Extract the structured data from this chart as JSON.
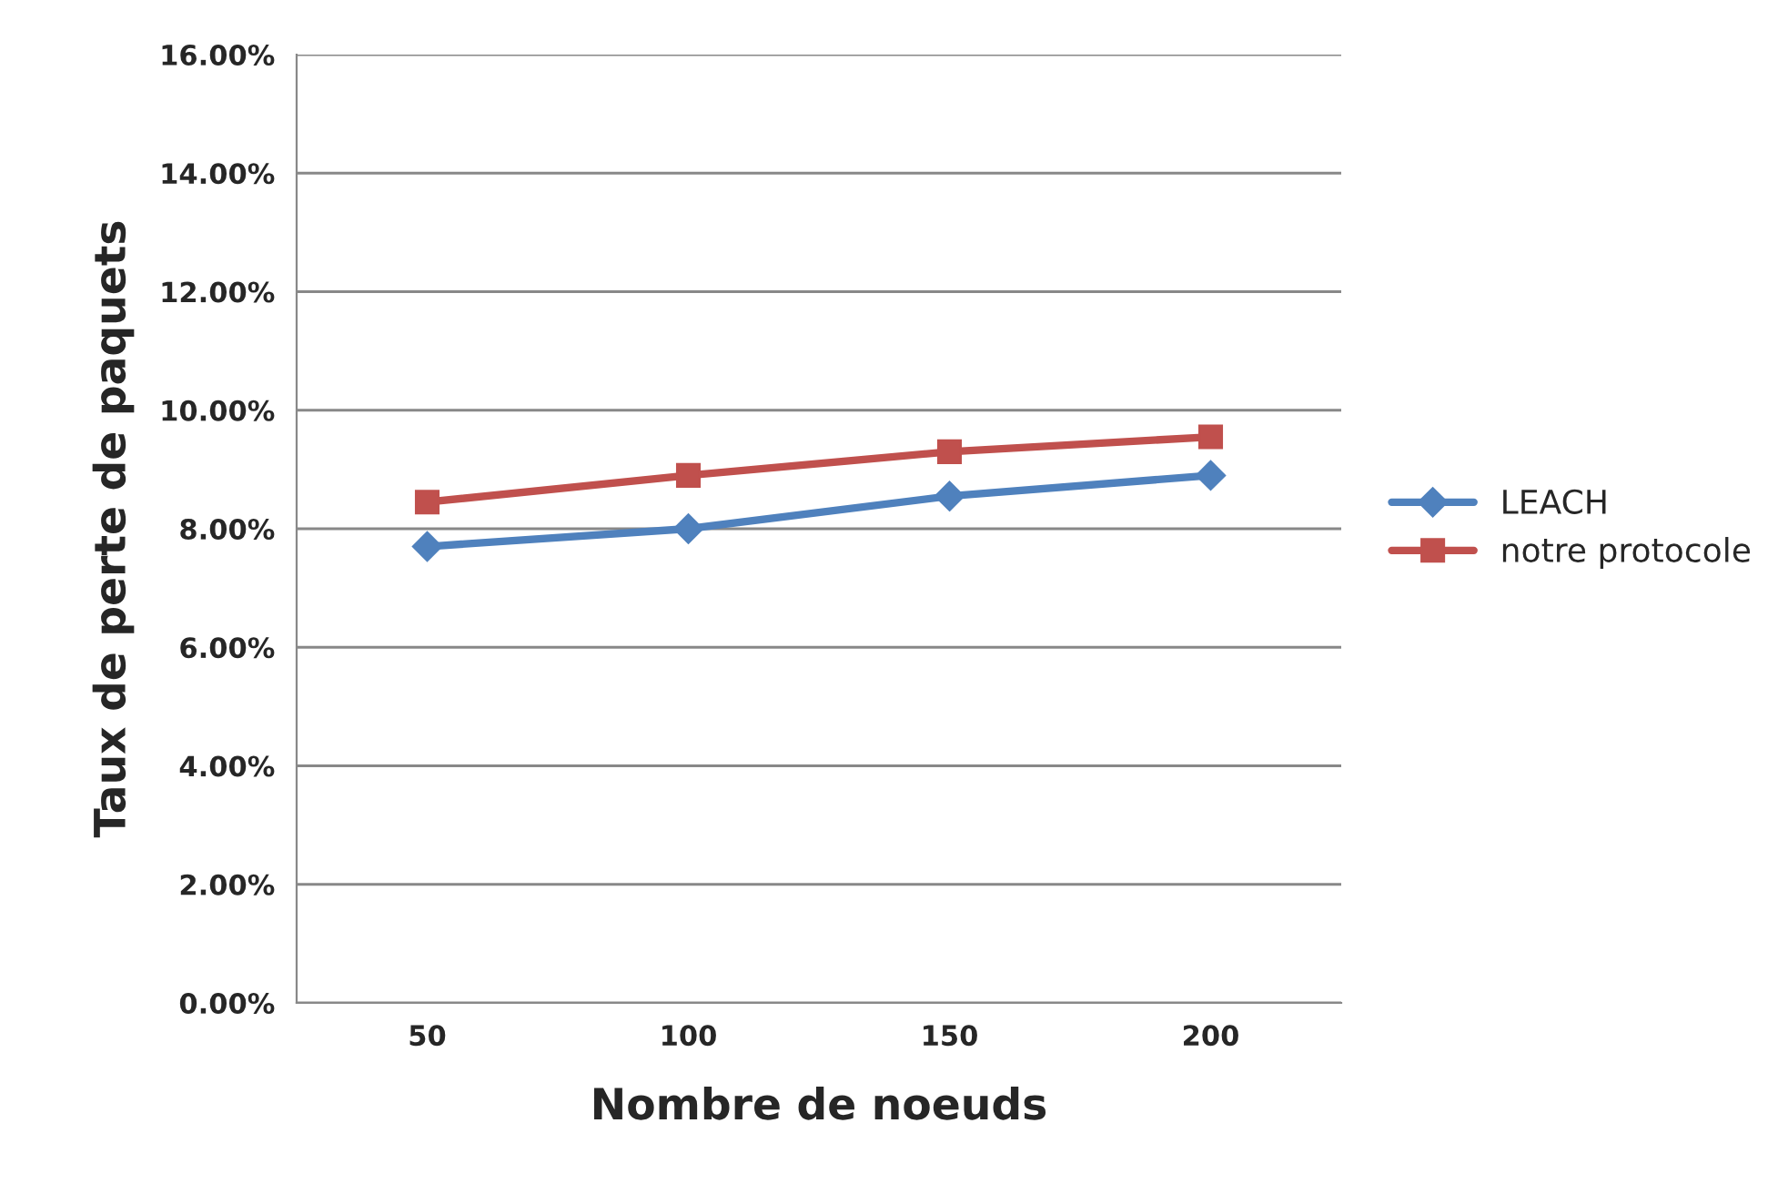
{
  "chart_data": {
    "type": "line",
    "xlabel": "Nombre de noeuds",
    "ylabel": "Taux de perte de paquets",
    "categories": [
      "50",
      "100",
      "150",
      "200"
    ],
    "series": [
      {
        "name": "LEACH",
        "color": "#4f81bd",
        "marker": "diamond",
        "values": [
          7.7,
          8.0,
          8.55,
          8.9
        ]
      },
      {
        "name": "notre protocole",
        "color": "#c0504d",
        "marker": "square",
        "values": [
          8.45,
          8.9,
          9.3,
          9.55
        ]
      }
    ],
    "ylim": [
      0,
      16
    ],
    "yticks": [
      {
        "value": 0,
        "label": "0.00%"
      },
      {
        "value": 2,
        "label": "2.00%"
      },
      {
        "value": 4,
        "label": "4.00%"
      },
      {
        "value": 6,
        "label": "6.00%"
      },
      {
        "value": 8,
        "label": "8.00%"
      },
      {
        "value": 10,
        "label": "10.00%"
      },
      {
        "value": 12,
        "label": "12.00%"
      },
      {
        "value": 14,
        "label": "14.00%"
      },
      {
        "value": 16,
        "label": "16.00%"
      }
    ],
    "grid": "y",
    "legend": "right",
    "line_style": "solid"
  }
}
